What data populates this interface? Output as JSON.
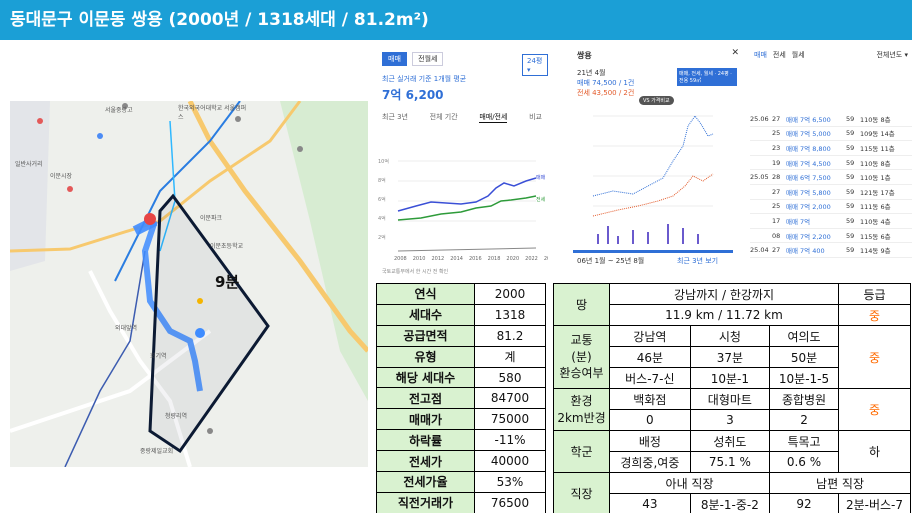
{
  "header": {
    "title": "동대문구 이문동 쌍용 (2000년 / 1318세대 / 81.2m²)"
  },
  "map": {
    "walk_time": "9분",
    "places": [
      "서울중랑고",
      "한국외국어대학교 서울캠퍼스",
      "이문파크",
      "이문초등학교",
      "이문시장",
      "일반사거리",
      "회기역",
      "청량리역",
      "중랑제일교회",
      "외대앞역"
    ],
    "colors": {
      "route": "#3f8cff",
      "poly": "#0c1a33"
    }
  },
  "price_panel": {
    "tabs": [
      "매매",
      "전월세"
    ],
    "size_select": "24평",
    "subtitle": "최근 실거래 기준 1개월 평균",
    "price": "7억 6,200",
    "period_tabs": [
      "최근 3년",
      "전체 기간",
      "매매/전세",
      "비교"
    ],
    "yaxis": [
      "10억",
      "8억",
      "6억",
      "4억",
      "2억",
      "0"
    ],
    "xaxis": [
      "2008",
      "2010",
      "2012",
      "2014",
      "2016",
      "2018",
      "2020",
      "2022",
      "2024"
    ],
    "series_labels": [
      "매매",
      "전세"
    ],
    "footer": "국토교통부에서 한 시간 전 확인"
  },
  "chart_panel": {
    "title": "쌍용",
    "date": "21년 4월",
    "sale": "매매 74,500 / 1건",
    "jeonse": "전세 43,500 / 2건",
    "legend": "매매, 전세, 월세 · 24평 · 전용 59㎡",
    "vs": "VS 가격비교",
    "range": "06년 1월 ~ 25년 8월",
    "recent": "최근 3년 보기"
  },
  "list_panel": {
    "tabs": [
      "매매",
      "전세",
      "월세"
    ],
    "filter": "전체년도",
    "rows": [
      {
        "date": "25.06",
        "day": "27",
        "price": "매매 7억 6,500",
        "area": "59",
        "floor": "110동 8층"
      },
      {
        "date": "",
        "day": "25",
        "price": "매매 7억 5,000",
        "area": "59",
        "floor": "109동 14층"
      },
      {
        "date": "",
        "day": "23",
        "price": "매매 7억 8,800",
        "area": "59",
        "floor": "115동 11층"
      },
      {
        "date": "",
        "day": "19",
        "price": "매매 7억 4,500",
        "area": "59",
        "floor": "110동 8층"
      },
      {
        "date": "25.05",
        "day": "28",
        "price": "매매 6억 7,500",
        "area": "59",
        "floor": "110동 1층"
      },
      {
        "date": "",
        "day": "27",
        "price": "매매 7억 5,800",
        "area": "59",
        "floor": "121동 17층"
      },
      {
        "date": "",
        "day": "25",
        "price": "매매 7억 2,000",
        "area": "59",
        "floor": "111동 6층"
      },
      {
        "date": "",
        "day": "17",
        "price": "매매 7억",
        "area": "59",
        "floor": "110동 4층"
      },
      {
        "date": "",
        "day": "08",
        "price": "매매 7억 2,200",
        "area": "59",
        "floor": "115동 6층"
      },
      {
        "date": "25.04",
        "day": "27",
        "price": "매매 7억 400",
        "area": "59",
        "floor": "114동 9층"
      }
    ]
  },
  "info_table": [
    {
      "label": "연식",
      "value": "2000"
    },
    {
      "label": "세대수",
      "value": "1318"
    },
    {
      "label": "공급면적",
      "value": "81.2"
    },
    {
      "label": "유형",
      "value": "계"
    },
    {
      "label": "해당 세대수",
      "value": "580"
    },
    {
      "label": "전고점",
      "value": "84700"
    },
    {
      "label": "매매가",
      "value": "75000"
    },
    {
      "label": "하락률",
      "value": "-11%"
    },
    {
      "label": "전세가",
      "value": "40000"
    },
    {
      "label": "전세가율",
      "value": "53%"
    },
    {
      "label": "직전거래가",
      "value": "76500"
    }
  ],
  "location_table": {
    "land": {
      "label": "땅",
      "header": "강남까지 / 한강까지",
      "value": "11.9 km / 11.72 km",
      "grade_header": "등급",
      "grade": "중"
    },
    "transport": {
      "label": "교통\n(분)\n환승여부",
      "stations": [
        "강남역",
        "시청",
        "여의도"
      ],
      "times": [
        "46분",
        "37분",
        "50분"
      ],
      "transfers": [
        "버스-7-신",
        "10분-1",
        "10분-1-5"
      ],
      "grade": "중"
    },
    "environment": {
      "label": "환경\n2km반경",
      "items": [
        "백화점",
        "대형마트",
        "종합병원"
      ],
      "counts": [
        "0",
        "3",
        "2"
      ],
      "grade": "중"
    },
    "school": {
      "label": "학군",
      "items": [
        "배정",
        "성취도",
        "특목고"
      ],
      "values": [
        "경희중,여중",
        "75.1 %",
        "0.6 %"
      ],
      "grade": "하"
    },
    "job": {
      "label": "직장",
      "wife": "아내 직장",
      "husband": "남편 직장",
      "values": [
        "43",
        "8분-1-중-2",
        "92",
        "2분-버스-7"
      ]
    }
  }
}
